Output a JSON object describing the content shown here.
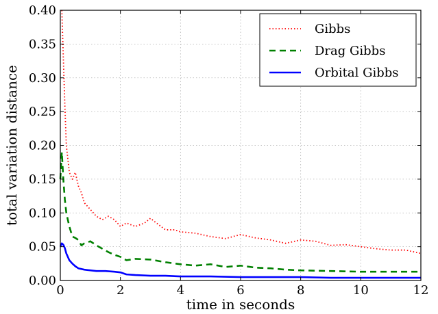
{
  "chart_data": {
    "type": "line",
    "xlabel": "time in seconds",
    "ylabel": "total variation distance",
    "xlim": [
      0,
      12
    ],
    "ylim": [
      0,
      0.4
    ],
    "xticks": [
      0,
      2,
      4,
      6,
      8,
      10,
      12
    ],
    "yticks": [
      0.0,
      0.05,
      0.1,
      0.15,
      0.2,
      0.25,
      0.3,
      0.35,
      0.4
    ],
    "xtick_labels": [
      "0",
      "2",
      "4",
      "6",
      "8",
      "10",
      "12"
    ],
    "ytick_labels": [
      "0.00",
      "0.05",
      "0.10",
      "0.15",
      "0.20",
      "0.25",
      "0.30",
      "0.35",
      "0.40"
    ],
    "grid": true,
    "legend_position": "top-right",
    "series": [
      {
        "name": "Gibbs",
        "color": "#ff0000",
        "style": "dotted",
        "x": [
          0.05,
          0.1,
          0.15,
          0.2,
          0.3,
          0.4,
          0.5,
          0.6,
          0.7,
          0.8,
          0.9,
          1.0,
          1.2,
          1.4,
          1.6,
          1.8,
          2.0,
          2.2,
          2.5,
          2.8,
          3.0,
          3.2,
          3.5,
          3.8,
          4.0,
          4.5,
          5.0,
          5.5,
          6.0,
          6.5,
          7.0,
          7.5,
          8.0,
          8.5,
          9.0,
          9.5,
          10.0,
          10.5,
          11.0,
          11.5,
          12.0
        ],
        "y": [
          0.4,
          0.33,
          0.26,
          0.2,
          0.16,
          0.15,
          0.16,
          0.14,
          0.13,
          0.115,
          0.11,
          0.105,
          0.095,
          0.09,
          0.095,
          0.09,
          0.08,
          0.085,
          0.08,
          0.085,
          0.092,
          0.085,
          0.075,
          0.075,
          0.072,
          0.07,
          0.065,
          0.062,
          0.068,
          0.063,
          0.06,
          0.055,
          0.06,
          0.058,
          0.052,
          0.053,
          0.05,
          0.047,
          0.045,
          0.045,
          0.04
        ]
      },
      {
        "name": "Drag Gibbs",
        "color": "#008000",
        "style": "dashed",
        "x": [
          0.0,
          0.05,
          0.1,
          0.15,
          0.2,
          0.3,
          0.4,
          0.5,
          0.6,
          0.7,
          0.8,
          1.0,
          1.2,
          1.4,
          1.6,
          1.8,
          2.0,
          2.2,
          2.5,
          3.0,
          3.5,
          4.0,
          4.5,
          5.0,
          5.5,
          6.0,
          6.5,
          7.0,
          7.5,
          8.0,
          9.0,
          10.0,
          11.0,
          12.0
        ],
        "y": [
          0.15,
          0.19,
          0.15,
          0.12,
          0.1,
          0.08,
          0.065,
          0.063,
          0.06,
          0.052,
          0.055,
          0.058,
          0.052,
          0.047,
          0.042,
          0.038,
          0.035,
          0.03,
          0.032,
          0.031,
          0.027,
          0.024,
          0.022,
          0.024,
          0.02,
          0.022,
          0.019,
          0.018,
          0.016,
          0.015,
          0.014,
          0.013,
          0.013,
          0.013
        ]
      },
      {
        "name": "Orbital Gibbs",
        "color": "#0000ff",
        "style": "solid",
        "x": [
          0.0,
          0.05,
          0.1,
          0.15,
          0.2,
          0.3,
          0.4,
          0.5,
          0.6,
          0.8,
          1.0,
          1.2,
          1.5,
          1.8,
          2.0,
          2.2,
          2.5,
          3.0,
          3.5,
          4.0,
          5.0,
          6.0,
          7.0,
          8.0,
          9.0,
          10.0,
          11.0,
          12.0
        ],
        "y": [
          0.05,
          0.055,
          0.053,
          0.048,
          0.04,
          0.03,
          0.025,
          0.021,
          0.018,
          0.016,
          0.015,
          0.014,
          0.014,
          0.013,
          0.012,
          0.009,
          0.008,
          0.007,
          0.007,
          0.006,
          0.006,
          0.005,
          0.005,
          0.005,
          0.004,
          0.004,
          0.004,
          0.004
        ]
      }
    ]
  }
}
